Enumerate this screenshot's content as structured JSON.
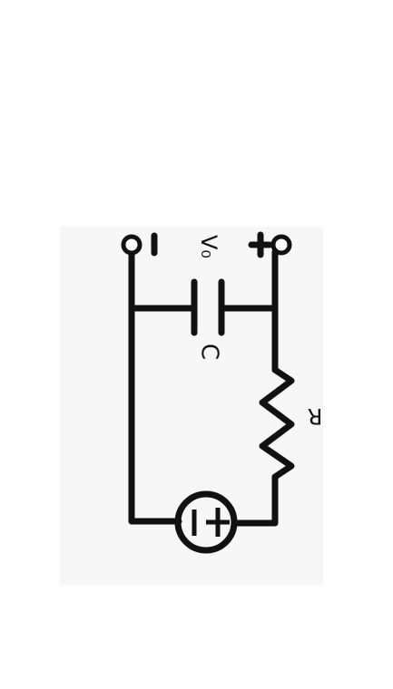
{
  "diagram": {
    "labels": {
      "capacitor": "C",
      "resistor": "R",
      "output_voltage": "V₀",
      "terminal_positive": "+",
      "terminal_negative": "−",
      "source_plus": "+",
      "source_minus": "−"
    },
    "colors": {
      "background": "#ffffff",
      "paper": "#f7f7f7",
      "ink": "#111111"
    }
  }
}
